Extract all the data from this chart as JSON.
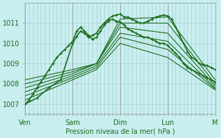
{
  "title": "",
  "xlabel": "Pression niveau de la mer( hPa )",
  "ylabel": "",
  "bg_color": "#c8eef0",
  "grid_color": "#a0c8c8",
  "line_color": "#1a6b1a",
  "marker_color": "#1a6b1a",
  "ylim": [
    1006.5,
    1012.0
  ],
  "yticks": [
    1007,
    1008,
    1009,
    1010,
    1011
  ],
  "xtick_labels": [
    "Ven",
    "Sam",
    "Dim",
    "Lun",
    "M"
  ],
  "xtick_positions": [
    0,
    24,
    48,
    72,
    96
  ],
  "lines": [
    {
      "x": [
        0,
        2,
        4,
        6,
        8,
        10,
        12,
        14,
        16,
        18,
        20,
        22,
        24,
        26,
        28,
        30,
        32,
        34,
        36,
        38,
        40,
        42,
        44,
        46,
        48,
        50,
        52,
        54,
        56,
        58,
        60,
        62,
        64,
        66,
        68,
        70,
        72,
        74,
        76,
        78,
        80,
        82,
        84,
        86,
        88,
        90,
        92,
        94,
        96
      ],
      "y": [
        1007.0,
        1007.2,
        1007.5,
        1007.8,
        1008.1,
        1008.4,
        1008.7,
        1009.0,
        1009.3,
        1009.5,
        1009.7,
        1009.9,
        1010.1,
        1010.6,
        1010.8,
        1010.6,
        1010.4,
        1010.2,
        1010.3,
        1010.6,
        1010.9,
        1011.1,
        1011.2,
        1011.1,
        1011.05,
        1010.9,
        1010.7,
        1010.6,
        1010.5,
        1010.4,
        1010.3,
        1010.3,
        1010.2,
        1010.1,
        1010.0,
        1010.0,
        1009.9,
        1009.7,
        1009.5,
        1009.3,
        1009.0,
        1008.8,
        1008.7,
        1008.6,
        1008.5,
        1008.4,
        1008.3,
        1008.2,
        1008.1
      ],
      "marker": true,
      "linewidth": 1.2
    },
    {
      "x": [
        0,
        24,
        36,
        48,
        72,
        96
      ],
      "y": [
        1008.2,
        1008.7,
        1009.0,
        1011.2,
        1011.3,
        1008.2
      ],
      "marker": false,
      "linewidth": 0.8
    },
    {
      "x": [
        0,
        24,
        36,
        48,
        72,
        96
      ],
      "y": [
        1008.0,
        1008.6,
        1009.0,
        1011.0,
        1011.0,
        1008.0
      ],
      "marker": false,
      "linewidth": 0.8
    },
    {
      "x": [
        0,
        24,
        36,
        48,
        72,
        96
      ],
      "y": [
        1007.8,
        1008.5,
        1009.0,
        1010.8,
        1010.5,
        1007.9
      ],
      "marker": false,
      "linewidth": 0.8
    },
    {
      "x": [
        0,
        24,
        36,
        48,
        72,
        96
      ],
      "y": [
        1007.6,
        1008.4,
        1008.9,
        1010.5,
        1010.1,
        1007.8
      ],
      "marker": false,
      "linewidth": 0.8
    },
    {
      "x": [
        0,
        24,
        36,
        48,
        72,
        96
      ],
      "y": [
        1007.4,
        1008.3,
        1008.8,
        1010.3,
        1009.7,
        1007.75
      ],
      "marker": false,
      "linewidth": 0.8
    },
    {
      "x": [
        0,
        24,
        36,
        48,
        72,
        96
      ],
      "y": [
        1007.2,
        1008.2,
        1008.7,
        1010.0,
        1009.3,
        1007.7
      ],
      "marker": false,
      "linewidth": 0.8
    },
    {
      "x": [
        0,
        6,
        12,
        18,
        24,
        26,
        28,
        30,
        32,
        34,
        36,
        38,
        40,
        42,
        44,
        46,
        48,
        50,
        52,
        54,
        56,
        58,
        60,
        62,
        64,
        66,
        68,
        70,
        72,
        74,
        76,
        78,
        80,
        82,
        84,
        86,
        88,
        90,
        92,
        94,
        96
      ],
      "y": [
        1007.0,
        1007.3,
        1007.8,
        1008.2,
        1010.0,
        1010.35,
        1010.6,
        1010.5,
        1010.3,
        1010.4,
        1010.5,
        1010.8,
        1011.0,
        1011.2,
        1011.35,
        1011.4,
        1011.45,
        1011.3,
        1011.3,
        1011.2,
        1011.1,
        1011.0,
        1011.0,
        1011.1,
        1011.2,
        1011.3,
        1011.35,
        1011.4,
        1011.35,
        1011.2,
        1010.8,
        1010.4,
        1010.0,
        1009.6,
        1009.3,
        1009.2,
        1009.0,
        1008.95,
        1008.9,
        1008.8,
        1008.7
      ],
      "marker": true,
      "linewidth": 1.2
    }
  ]
}
